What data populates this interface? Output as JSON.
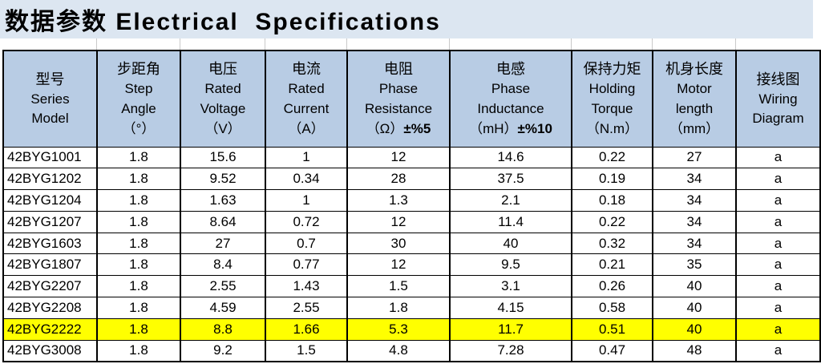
{
  "title": "数据参数 Electrical  Specifications",
  "colors": {
    "title_bg": "#dce6f1",
    "header_bg": "#b8cce4",
    "highlight_bg": "#ffff00",
    "border": "#000000"
  },
  "table": {
    "columns": [
      {
        "zh": "型号",
        "en": [
          "Series",
          "Model"
        ],
        "unit": "",
        "tolerance": ""
      },
      {
        "zh": "步距角",
        "en": [
          "Step",
          "Angle"
        ],
        "unit": "（°）",
        "tolerance": ""
      },
      {
        "zh": "电压",
        "en": [
          "Rated",
          "Voltage"
        ],
        "unit": "（V）",
        "tolerance": ""
      },
      {
        "zh": "电流",
        "en": [
          "Rated",
          "Current"
        ],
        "unit": "（A）",
        "tolerance": ""
      },
      {
        "zh": "电阻",
        "en": [
          "Phase",
          "Resistance"
        ],
        "unit": "（Ω）",
        "tolerance": "±%5"
      },
      {
        "zh": "电感",
        "en": [
          "Phase",
          "Inductance"
        ],
        "unit": "（mH）",
        "tolerance": "±%10"
      },
      {
        "zh": "保持力矩",
        "en": [
          "Holding",
          "Torque"
        ],
        "unit": "（N.m）",
        "tolerance": ""
      },
      {
        "zh": "机身长度",
        "en": [
          "Motor",
          "length"
        ],
        "unit": "（mm）",
        "tolerance": ""
      },
      {
        "zh": "接线图",
        "en": [
          "Wiring",
          "Diagram"
        ],
        "unit": "",
        "tolerance": ""
      }
    ],
    "rows": [
      {
        "model": "42BYG1001",
        "values": [
          "1.8",
          "15.6",
          "1",
          "12",
          "14.6",
          "0.22",
          "27",
          "a"
        ],
        "highlighted": false
      },
      {
        "model": "42BYG1202",
        "values": [
          "1.8",
          "9.52",
          "0.34",
          "28",
          "37.5",
          "0.19",
          "34",
          "a"
        ],
        "highlighted": false
      },
      {
        "model": "42BYG1204",
        "values": [
          "1.8",
          "1.63",
          "1",
          "1.3",
          "2.1",
          "0.18",
          "34",
          "a"
        ],
        "highlighted": false
      },
      {
        "model": "42BYG1207",
        "values": [
          "1.8",
          "8.64",
          "0.72",
          "12",
          "11.4",
          "0.22",
          "34",
          "a"
        ],
        "highlighted": false
      },
      {
        "model": "42BYG1603",
        "values": [
          "1.8",
          "27",
          "0.7",
          "30",
          "40",
          "0.32",
          "34",
          "a"
        ],
        "highlighted": false
      },
      {
        "model": "42BYG1807",
        "values": [
          "1.8",
          "8.4",
          "0.77",
          "12",
          "9.5",
          "0.21",
          "35",
          "a"
        ],
        "highlighted": false
      },
      {
        "model": "42BYG2207",
        "values": [
          "1.8",
          "2.55",
          "1.43",
          "1.5",
          "3.1",
          "0.26",
          "40",
          "a"
        ],
        "highlighted": false
      },
      {
        "model": "42BYG2208",
        "values": [
          "1.8",
          "4.59",
          "2.55",
          "1.8",
          "4.15",
          "0.58",
          "40",
          "a"
        ],
        "highlighted": false
      },
      {
        "model": "42BYG2222",
        "values": [
          "1.8",
          "8.8",
          "1.66",
          "5.3",
          "11.7",
          "0.51",
          "40",
          "a"
        ],
        "highlighted": true
      },
      {
        "model": "42BYG3008",
        "values": [
          "1.8",
          "9.2",
          "1.5",
          "4.8",
          "7.28",
          "0.47",
          "48",
          "a"
        ],
        "highlighted": false
      }
    ]
  }
}
